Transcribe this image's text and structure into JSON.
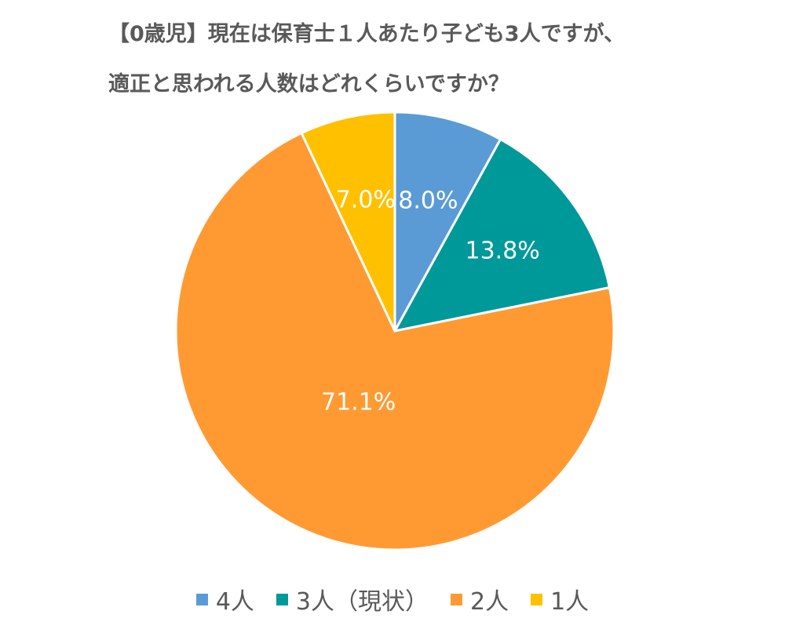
{
  "chart_data": {
    "type": "pie",
    "title_lines": [
      "【0歳児】現在は保育士１人あたり子ども3人ですが、",
      "適正と思われる人数はどれくらいですか？"
    ],
    "categories": [
      "4人",
      "3人（現状）",
      "2人",
      "1人"
    ],
    "values": [
      8.0,
      13.8,
      71.1,
      7.0
    ],
    "labels": [
      "8.0%",
      "13.8%",
      "71.1%",
      "7.0%"
    ],
    "colors": [
      "#5B9BD5",
      "#00999A",
      "#FF9A33",
      "#FFC000"
    ],
    "legend_position": "bottom"
  }
}
